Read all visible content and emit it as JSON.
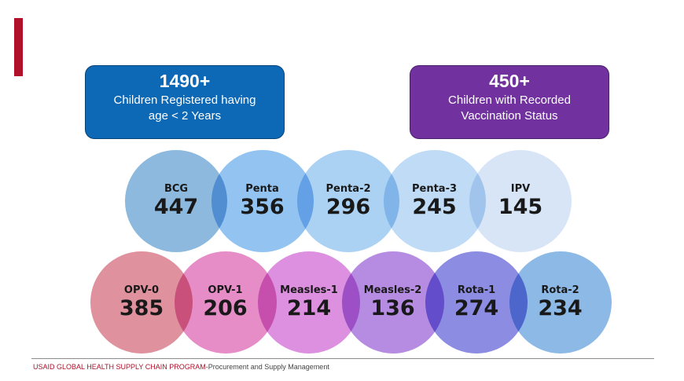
{
  "summary": [
    {
      "number": "1490+",
      "text": "Children Registered having age < 2 Years",
      "color": "#0d68b5"
    },
    {
      "number": "450+",
      "text": "Children with Recorded Vaccination Status",
      "color": "#7132a0"
    }
  ],
  "vaccines_row1": [
    {
      "name": "BCG",
      "count": "447",
      "color": "#7fb2da"
    },
    {
      "name": "Penta",
      "count": "356",
      "color": "#86bdf0"
    },
    {
      "name": "Penta-2",
      "count": "296",
      "color": "#a3cdf2"
    },
    {
      "name": "Penta-3",
      "count": "245",
      "color": "#b8d7f4"
    },
    {
      "name": "IPV",
      "count": "145",
      "color": "#d3e3f7"
    }
  ],
  "vaccines_row2": [
    {
      "name": "OPV-0",
      "count": "385",
      "color": "#dc8592"
    },
    {
      "name": "OPV-1",
      "count": "206",
      "color": "#e47fc1"
    },
    {
      "name": "Measles-1",
      "count": "214",
      "color": "#d884dc"
    },
    {
      "name": "Measles-2",
      "count": "136",
      "color": "#ae7fe0"
    },
    {
      "name": "Rota-1",
      "count": "274",
      "color": "#7f7fe0"
    },
    {
      "name": "Rota-2",
      "count": "234",
      "color": "#7fb2e4"
    }
  ],
  "footer": {
    "org": "USAID GLOBAL HEALTH SUPPLY CHAIN PROGRAM",
    "subtitle": "-Procurement and Supply Management"
  },
  "colors": {
    "accent": "#b0102a"
  }
}
